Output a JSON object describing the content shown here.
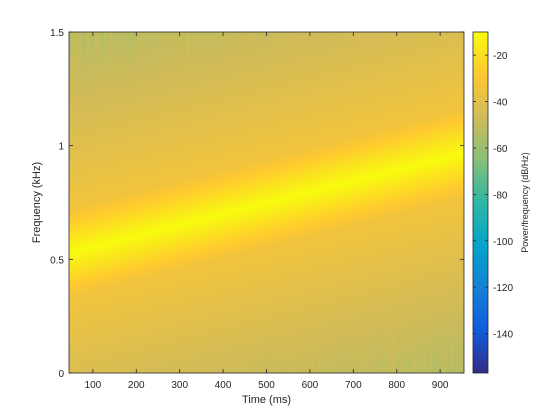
{
  "chart_data": {
    "type": "heatmap",
    "title": "",
    "xlabel": "Time (ms)",
    "ylabel": "Frequency (kHz)",
    "colorbar_label": "Power/frequency (dB/Hz)",
    "xlim": [
      45,
      955
    ],
    "ylim": [
      0,
      1.5
    ],
    "clim": [
      -157,
      -10
    ],
    "x_ticks": [
      100,
      200,
      300,
      400,
      500,
      600,
      700,
      800,
      900
    ],
    "x_tick_labels": [
      "100",
      "200",
      "300",
      "400",
      "500",
      "600",
      "700",
      "800",
      "900"
    ],
    "y_ticks": [
      0,
      0.5,
      1,
      1.5
    ],
    "y_tick_labels": [
      "0",
      "0.5",
      "1",
      "1.5"
    ],
    "colorbar_ticks": [
      -20,
      -40,
      -60,
      -80,
      -100,
      -120,
      -140
    ],
    "colorbar_tick_labels": [
      "-20",
      "-40",
      "-60",
      "-80",
      "-100",
      "-120",
      "-140"
    ],
    "colormap": "parula",
    "colormap_stops": [
      "#352a87",
      "#0f5cdd",
      "#1481d6",
      "#06a4ca",
      "#2eb7a4",
      "#87bf77",
      "#d1bb59",
      "#fec832",
      "#f9fb0e"
    ],
    "chirp": {
      "start_time_ms": 45,
      "start_frequency_khz": 0.53,
      "end_time_ms": 955,
      "end_frequency_khz": 0.97,
      "peak_power_db": -10
    },
    "background_power_db_range": [
      -70,
      -40
    ],
    "grid": false
  }
}
